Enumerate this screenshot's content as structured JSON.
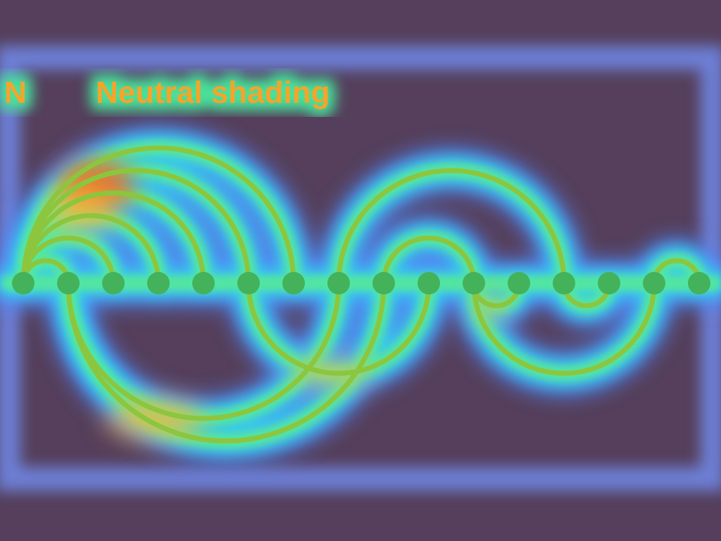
{
  "header": {
    "letter": "N",
    "caption": "Neutral shading"
  },
  "colors": {
    "background": "#553f5c",
    "frame_glow": "#6f86e3",
    "arc_core": "#8cc63e",
    "arc_halo_outer": "#4f8dff",
    "arc_halo_mid": "#35d4e8",
    "arc_halo_inner": "#56e89a",
    "hot_spot": "#ff5a1a",
    "warm_spot": "#ffc238",
    "node_fill": "#44b25a",
    "label_text": "#f7a32a"
  },
  "diagram": {
    "node_count": 16,
    "upper_arcs": [
      [
        0,
        1
      ],
      [
        0,
        2
      ],
      [
        0,
        3
      ],
      [
        0,
        4
      ],
      [
        0,
        5
      ],
      [
        0,
        6
      ],
      [
        7,
        12
      ],
      [
        8,
        10
      ],
      [
        14,
        15
      ]
    ],
    "lower_arcs": [
      [
        1,
        7
      ],
      [
        1,
        8
      ],
      [
        5,
        9
      ],
      [
        10,
        11
      ],
      [
        12,
        13
      ],
      [
        10,
        14
      ]
    ]
  }
}
